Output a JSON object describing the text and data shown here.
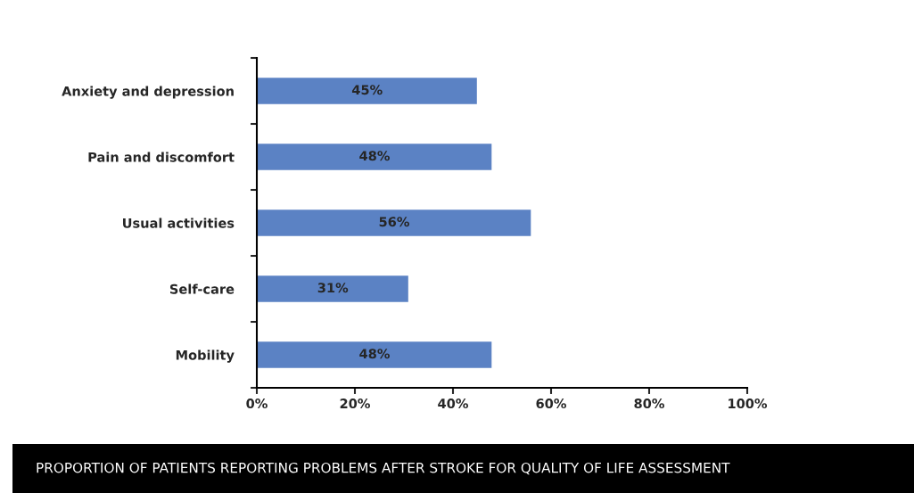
{
  "chart_data": {
    "type": "bar",
    "orientation": "horizontal",
    "categories": [
      "Anxiety and depression",
      "Pain and discomfort",
      "Usual activities",
      "Self-care",
      "Mobility"
    ],
    "values": [
      45,
      48,
      56,
      31,
      48
    ],
    "value_labels": [
      "45%",
      "48%",
      "56%",
      "31%",
      "48%"
    ],
    "color": "#5b82c4",
    "xlim": [
      0,
      100
    ],
    "xticks": [
      {
        "value": 0,
        "label": "0%"
      },
      {
        "value": 20,
        "label": "20%"
      },
      {
        "value": 40,
        "label": "40%"
      },
      {
        "value": 60,
        "label": "60%"
      },
      {
        "value": 80,
        "label": "80%"
      },
      {
        "value": 100,
        "label": "100%"
      }
    ],
    "grid": false,
    "annotations": [
      "PROPORTION OF PATIENTS REPORTING PROBLEMS AFTER STROKE FOR QUALITY OF LIFE ASSESSMENT"
    ]
  }
}
